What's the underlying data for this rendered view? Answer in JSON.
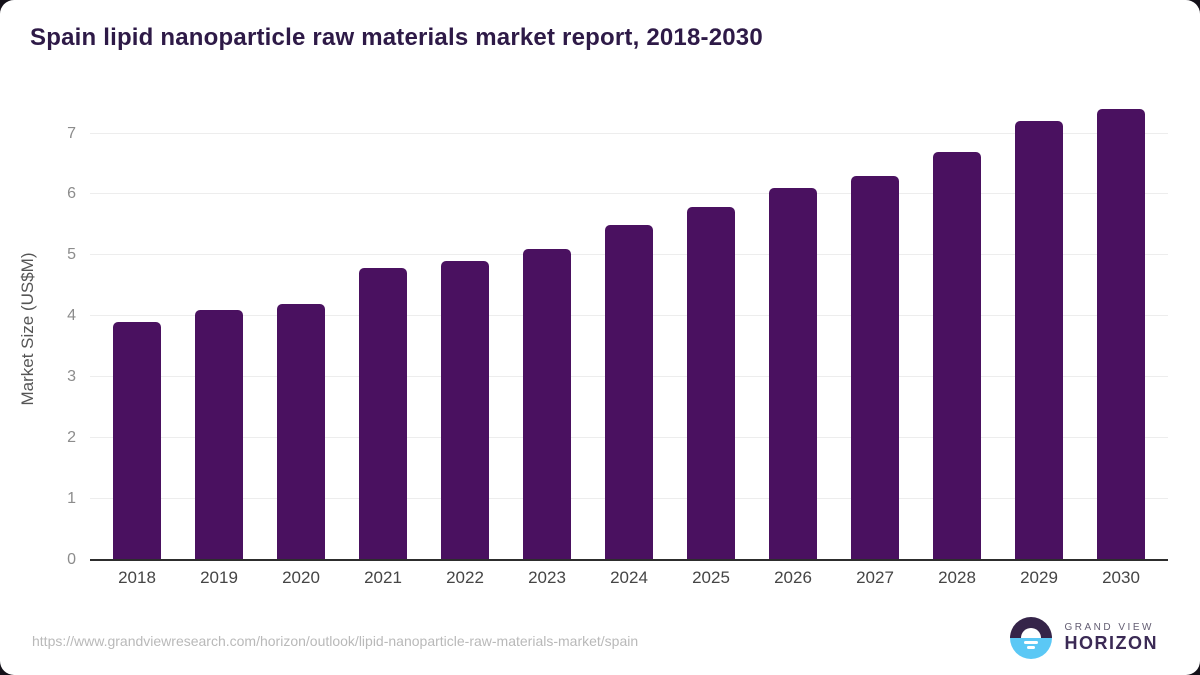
{
  "header": {
    "title": "Spain lipid nanoparticle raw materials market report, 2018-2030"
  },
  "chart_data": {
    "type": "bar",
    "title": "Spain lipid nanoparticle raw materials market report, 2018-2030",
    "categories": [
      "2018",
      "2019",
      "2020",
      "2021",
      "2022",
      "2023",
      "2024",
      "2025",
      "2026",
      "2027",
      "2028",
      "2029",
      "2030"
    ],
    "values": [
      3.9,
      4.1,
      4.2,
      4.8,
      4.9,
      5.1,
      5.5,
      5.8,
      6.1,
      6.3,
      6.7,
      7.2,
      7.4
    ],
    "xlabel": "",
    "ylabel": "Market Size (US$M)",
    "ylim": [
      0,
      7.55
    ],
    "yticks": [
      0,
      1,
      2,
      3,
      4,
      5,
      6,
      7
    ],
    "grid": "horizontal",
    "legend": "none",
    "bar_color": "#4a1160"
  },
  "colors": {
    "title_text": "#2e1a47",
    "bar": "#4a1160",
    "gridline": "#ededed",
    "axis_line": "#2d2d2d",
    "logo_dark": "#352449",
    "logo_blue": "#5bc8f5",
    "brand_bottom_text": "#3b2a55"
  },
  "footer": {
    "source_url": "https://www.grandviewresearch.com/horizon/outlook/lipid-nanoparticle-raw-materials-market/spain",
    "logo": {
      "line1": "GRAND VIEW",
      "line2": "HORIZON"
    }
  }
}
